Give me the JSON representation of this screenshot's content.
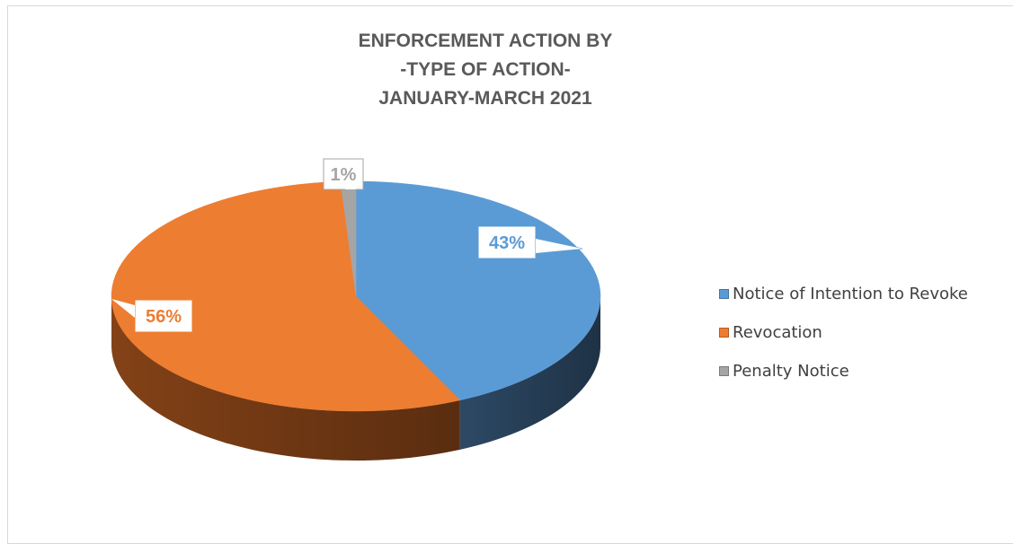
{
  "chart_data": {
    "type": "pie",
    "title_lines": [
      "ENFORCEMENT ACTION BY",
      "-TYPE OF ACTION-",
      "JANUARY-MARCH 2021"
    ],
    "categories": [
      "Notice of Intention to Revoke",
      "Revocation",
      "Penalty Notice"
    ],
    "values": [
      43,
      56,
      1
    ],
    "labels": [
      "43%",
      "56%",
      "1%"
    ],
    "colors": [
      "#5b9bd5",
      "#ed7d31",
      "#a5a5a5"
    ],
    "side_colors": [
      "#2f4d6a",
      "#8a4518",
      "#6b6b6b"
    ],
    "label_colors": [
      "#5b9bd5",
      "#ed7d31",
      "#a5a5a5"
    ],
    "legend_position": "right",
    "style": "3d"
  }
}
